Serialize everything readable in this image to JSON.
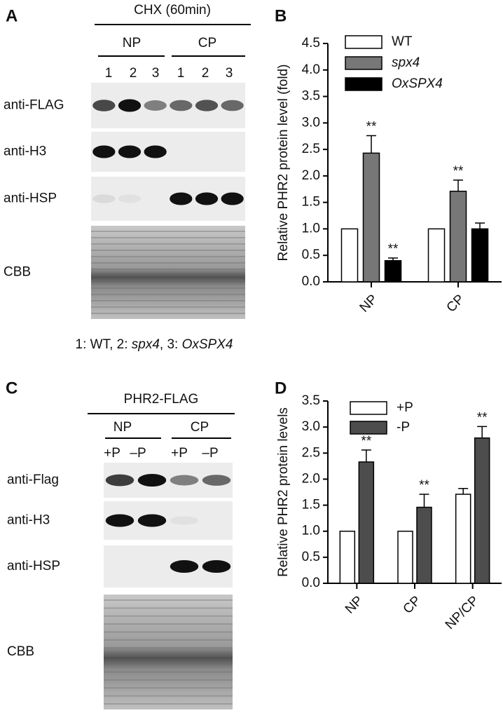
{
  "blots": [
    {
      "panel_label": "A",
      "title": "CHX (60min)",
      "groups": [
        "NP",
        "CP"
      ],
      "lanes": [
        "1",
        "2",
        "3",
        "1",
        "2",
        "3"
      ],
      "rows": [
        "anti-FLAG",
        "anti-H3",
        "anti-HSP",
        "CBB"
      ],
      "caption": [
        "1: WT, 2: ",
        "spx4",
        ", 3: ",
        "OxSPX4"
      ]
    },
    {
      "panel_label": "C",
      "title": "PHR2-FLAG",
      "groups": [
        "NP",
        "CP"
      ],
      "lanes": [
        "+P",
        "–P",
        "+P",
        "–P"
      ],
      "rows": [
        "anti-Flag",
        "anti-H3",
        "anti-HSP",
        "CBB"
      ]
    }
  ],
  "chart_data": [
    {
      "type": "bar",
      "panel_label": "B",
      "y_label": "Relative PHR2 protein level (fold)",
      "categories": [
        "NP",
        "CP"
      ],
      "series": [
        {
          "name": "WT",
          "color": "#ffffff",
          "italic": false,
          "values": [
            1.0,
            1.0
          ],
          "errors": [
            null,
            null
          ],
          "significance": [
            null,
            null
          ]
        },
        {
          "name": "spx4",
          "color": "#777777",
          "italic": true,
          "values": [
            2.43,
            1.71
          ],
          "errors": [
            0.33,
            0.21
          ],
          "significance": [
            "**",
            "**"
          ]
        },
        {
          "name": "OxSPX4",
          "color": "#000000",
          "italic": true,
          "values": [
            0.4,
            1.0
          ],
          "errors": [
            0.05,
            0.11
          ],
          "significance": [
            "**",
            null
          ]
        }
      ],
      "ylim": [
        0,
        4.5
      ],
      "yticks": [
        {
          "value": 0,
          "label": "0.0"
        },
        {
          "value": 0.5,
          "label": "0.5"
        },
        {
          "value": 1,
          "label": "1.0"
        },
        {
          "value": 1.5,
          "label": "1.5"
        },
        {
          "value": 2,
          "label": "2.0"
        },
        {
          "value": 2.5,
          "label": "2.5"
        },
        {
          "value": 3,
          "label": "3.0"
        },
        {
          "value": 3.5,
          "label": "3.5"
        },
        {
          "value": 4,
          "label": "4.0"
        },
        {
          "value": 4.5,
          "label": "4.5"
        }
      ],
      "legend": "top-left"
    },
    {
      "type": "bar",
      "panel_label": "D",
      "y_label": "Relative PHR2 protein levels",
      "categories": [
        "NP",
        "CP",
        "NP/CP"
      ],
      "series": [
        {
          "name": "+P",
          "color": "#ffffff",
          "italic": false,
          "values": [
            1.0,
            1.0,
            1.71
          ],
          "errors": [
            null,
            null,
            0.11
          ],
          "significance": [
            null,
            null,
            null
          ]
        },
        {
          "name": "-P",
          "color": "#4d4d4d",
          "italic": false,
          "values": [
            2.33,
            1.46,
            2.79
          ],
          "errors": [
            0.23,
            0.25,
            0.22
          ],
          "significance": [
            "**",
            "**",
            "**"
          ]
        }
      ],
      "ylim": [
        0,
        3.5
      ],
      "yticks": [
        {
          "value": 0,
          "label": "0.0"
        },
        {
          "value": 0.5,
          "label": "0.5"
        },
        {
          "value": 1,
          "label": "1.0"
        },
        {
          "value": 1.5,
          "label": "1.5"
        },
        {
          "value": 2,
          "label": "2.0"
        },
        {
          "value": 2.5,
          "label": "2.5"
        },
        {
          "value": 3,
          "label": "3.0"
        },
        {
          "value": 3.5,
          "label": "3.5"
        }
      ],
      "legend": "top-left"
    }
  ]
}
